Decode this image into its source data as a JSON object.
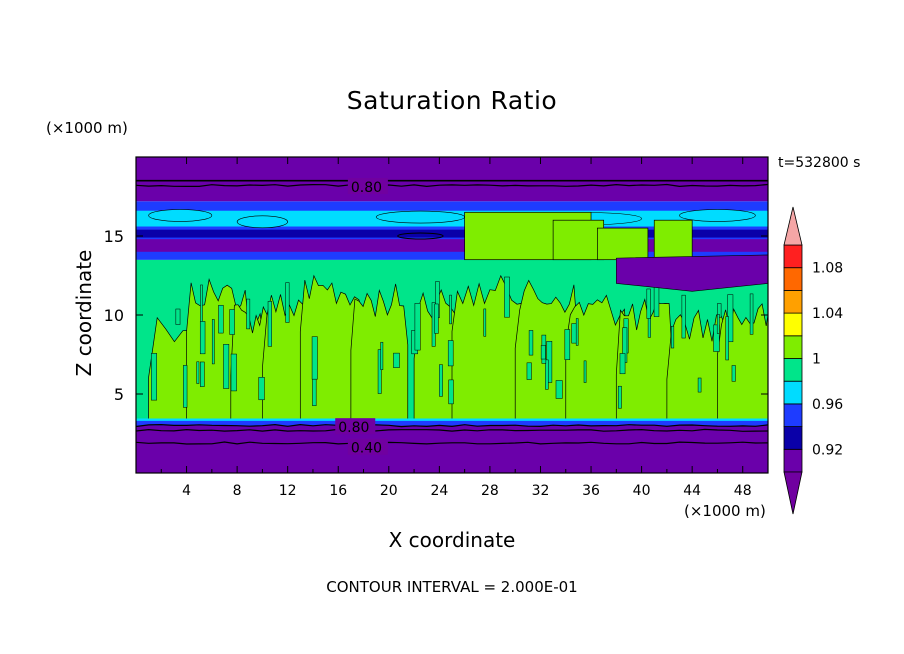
{
  "chart_data": {
    "type": "heatmap",
    "title": "Saturation Ratio",
    "xlabel": "X coordinate",
    "ylabel": "Z coordinate",
    "x_unit_label": "(×1000 m)",
    "y_unit_label": "(×1000 m)",
    "time_label": "t=532800 s",
    "footnote": "CONTOUR INTERVAL = 2.000E-01",
    "xlim": [
      0,
      50
    ],
    "ylim": [
      0,
      20
    ],
    "x_ticks": [
      "4",
      "8",
      "12",
      "16",
      "20",
      "24",
      "28",
      "32",
      "36",
      "40",
      "44",
      "48"
    ],
    "x_tick_values": [
      4,
      8,
      12,
      16,
      20,
      24,
      28,
      32,
      36,
      40,
      44,
      48
    ],
    "y_ticks": [
      "5",
      "10",
      "15"
    ],
    "y_tick_values": [
      5,
      10,
      15
    ],
    "contour_labels": [
      {
        "text": "0.80",
        "x": 17.0,
        "z": 18.1
      },
      {
        "text": "0.80",
        "x": 16.0,
        "z": 2.9
      },
      {
        "text": "0.40",
        "x": 17.0,
        "z": 1.6
      }
    ],
    "colorbar": {
      "levels": [
        0.9,
        0.92,
        0.94,
        0.96,
        0.98,
        1.0,
        1.02,
        1.04,
        1.06,
        1.08,
        1.1
      ],
      "tick_labels": [
        "0.92",
        "0.96",
        "1",
        "1.04",
        "1.08"
      ],
      "tick_values": [
        0.92,
        0.96,
        1.0,
        1.04,
        1.08
      ],
      "colors": [
        "#6a00aa",
        "#0a00a8",
        "#1e3cff",
        "#00dcff",
        "#00e58a",
        "#7fed00",
        "#ffff00",
        "#ffa000",
        "#ff6800",
        "#ff2020"
      ],
      "under_color": "#7000a0",
      "over_color": "#f5a6a6"
    },
    "layers": [
      {
        "z_from": 0.0,
        "z_to": 3.3,
        "value": "below 0.90",
        "color": "#6a00aa"
      },
      {
        "z_from": 3.3,
        "z_to": 13.5,
        "value": "0.98-1.02 (mixed)",
        "color": "#00e58a"
      },
      {
        "z_from": 13.5,
        "z_to": 17.2,
        "value": "0.90-0.98 (mixed)",
        "color": "#1e3cff"
      },
      {
        "z_from": 17.2,
        "z_to": 20.0,
        "value": "below 0.90",
        "color": "#6a00aa"
      }
    ]
  }
}
